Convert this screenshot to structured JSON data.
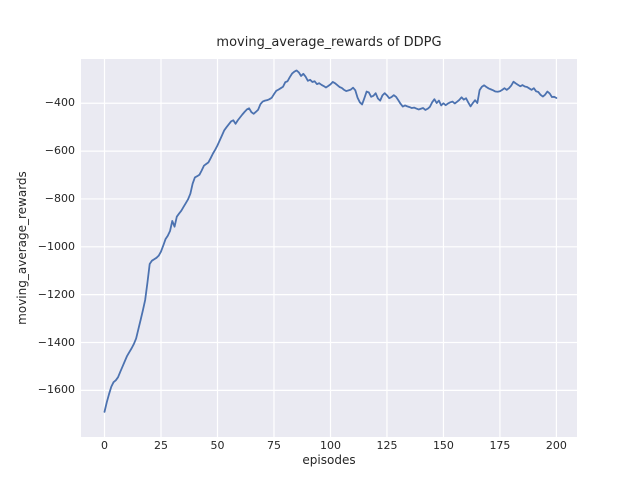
{
  "chart_data": {
    "type": "line",
    "title": "moving_average_rewards of DDPG",
    "xlabel": "episodes",
    "ylabel": "moving_average_rewards",
    "legend": "none",
    "grid": true,
    "x_start": 0,
    "x_step": 1,
    "values": [
      -1690,
      -1650,
      -1616,
      -1585,
      -1566,
      -1558,
      -1545,
      -1522,
      -1500,
      -1478,
      -1456,
      -1440,
      -1424,
      -1406,
      -1383,
      -1344,
      -1305,
      -1265,
      -1222,
      -1150,
      -1072,
      -1058,
      -1052,
      -1046,
      -1037,
      -1020,
      -995,
      -968,
      -954,
      -934,
      -892,
      -916,
      -874,
      -861,
      -849,
      -833,
      -817,
      -801,
      -778,
      -736,
      -710,
      -705,
      -699,
      -681,
      -661,
      -654,
      -647,
      -629,
      -610,
      -594,
      -576,
      -555,
      -534,
      -513,
      -500,
      -488,
      -476,
      -471,
      -486,
      -471,
      -459,
      -447,
      -436,
      -426,
      -421,
      -437,
      -444,
      -436,
      -427,
      -404,
      -393,
      -389,
      -387,
      -383,
      -377,
      -362,
      -348,
      -343,
      -337,
      -331,
      -312,
      -308,
      -291,
      -276,
      -268,
      -263,
      -271,
      -286,
      -277,
      -289,
      -306,
      -302,
      -311,
      -308,
      -320,
      -316,
      -323,
      -328,
      -334,
      -328,
      -321,
      -311,
      -316,
      -324,
      -332,
      -336,
      -344,
      -349,
      -346,
      -343,
      -335,
      -346,
      -377,
      -396,
      -405,
      -379,
      -351,
      -355,
      -373,
      -369,
      -358,
      -380,
      -389,
      -367,
      -358,
      -367,
      -379,
      -374,
      -366,
      -373,
      -387,
      -402,
      -414,
      -409,
      -413,
      -416,
      -420,
      -418,
      -422,
      -426,
      -423,
      -420,
      -428,
      -423,
      -415,
      -396,
      -383,
      -399,
      -389,
      -409,
      -400,
      -408,
      -401,
      -396,
      -393,
      -401,
      -394,
      -386,
      -375,
      -385,
      -379,
      -397,
      -413,
      -399,
      -387,
      -399,
      -345,
      -331,
      -325,
      -332,
      -338,
      -342,
      -346,
      -351,
      -352,
      -350,
      -344,
      -337,
      -344,
      -337,
      -326,
      -310,
      -317,
      -323,
      -329,
      -324,
      -330,
      -332,
      -338,
      -344,
      -337,
      -350,
      -353,
      -365,
      -372,
      -364,
      -351,
      -359,
      -374,
      -373,
      -378
    ],
    "xlim": [
      -10.4,
      209.1
    ],
    "ylim": [
      -1795,
      -215
    ],
    "xticks": [
      0,
      25,
      50,
      75,
      100,
      125,
      150,
      175,
      200
    ],
    "yticks": [
      -400,
      -600,
      -800,
      -1000,
      -1200,
      -1400,
      -1600
    ],
    "line_color": "#4c72b0",
    "plot_bg": "#eaeaf2",
    "grid_color": "#ffffff",
    "fig_bg": "#ffffff",
    "text_color": "#262626"
  }
}
